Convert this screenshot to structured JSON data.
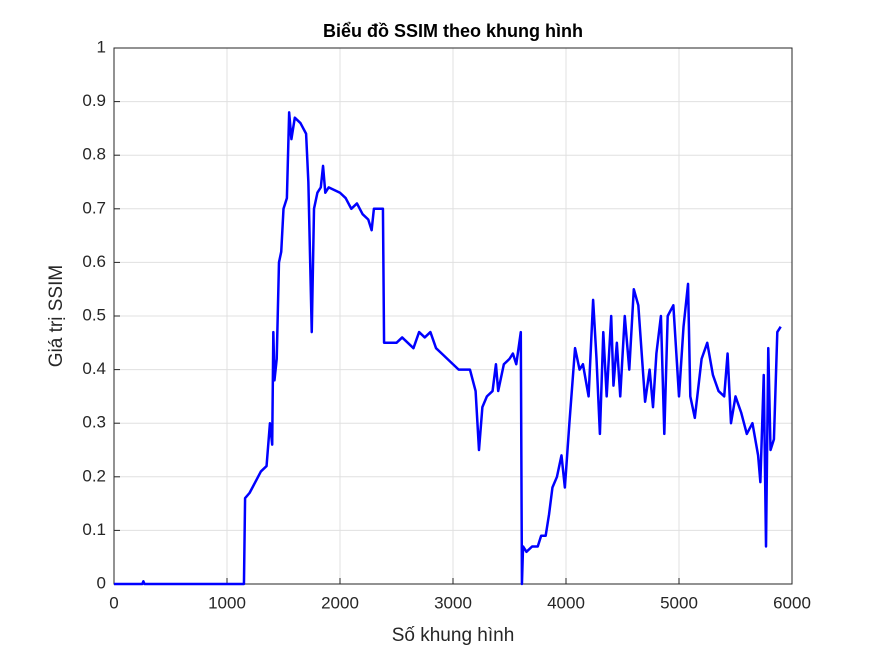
{
  "chart_data": {
    "type": "line",
    "title": "Biểu đồ SSIM theo khung hình",
    "x_label": "Số khung hình",
    "y_label": "Giá trị SSIM",
    "xlim": [
      0,
      6000
    ],
    "xticks": [
      0,
      1000,
      2000,
      3000,
      4000,
      5000,
      6000
    ],
    "ylim": [
      0,
      1
    ],
    "yticks": [
      0,
      0.1,
      0.2,
      0.3,
      0.4,
      0.5,
      0.6,
      0.7,
      0.8,
      0.9,
      1
    ],
    "grid": true,
    "series": [
      {
        "color": "#0000ff",
        "x": [
          0,
          250,
          260,
          270,
          1150,
          1160,
          1200,
          1250,
          1300,
          1350,
          1380,
          1400,
          1410,
          1420,
          1440,
          1460,
          1480,
          1500,
          1530,
          1550,
          1570,
          1600,
          1650,
          1700,
          1720,
          1750,
          1770,
          1800,
          1830,
          1850,
          1870,
          1900,
          2000,
          2050,
          2100,
          2150,
          2200,
          2250,
          2280,
          2300,
          2350,
          2380,
          2390,
          2450,
          2500,
          2550,
          2600,
          2650,
          2700,
          2750,
          2800,
          2850,
          2900,
          3000,
          3050,
          3100,
          3150,
          3200,
          3230,
          3260,
          3300,
          3350,
          3380,
          3400,
          3450,
          3500,
          3530,
          3560,
          3600,
          3610,
          3620,
          3650,
          3700,
          3750,
          3780,
          3820,
          3850,
          3880,
          3920,
          3960,
          3990,
          4030,
          4080,
          4120,
          4150,
          4200,
          4240,
          4270,
          4300,
          4330,
          4360,
          4400,
          4420,
          4450,
          4480,
          4520,
          4560,
          4600,
          4640,
          4680,
          4700,
          4740,
          4770,
          4800,
          4840,
          4870,
          4900,
          4950,
          5000,
          5040,
          5080,
          5100,
          5140,
          5200,
          5250,
          5300,
          5350,
          5400,
          5430,
          5460,
          5500,
          5550,
          5600,
          5650,
          5700,
          5720,
          5750,
          5770,
          5790,
          5810,
          5840,
          5870,
          5900
        ],
        "values": [
          0,
          0,
          0.005,
          0,
          0,
          0.16,
          0.17,
          0.19,
          0.21,
          0.22,
          0.3,
          0.26,
          0.47,
          0.38,
          0.42,
          0.6,
          0.62,
          0.7,
          0.72,
          0.88,
          0.83,
          0.87,
          0.86,
          0.84,
          0.75,
          0.47,
          0.7,
          0.73,
          0.74,
          0.78,
          0.73,
          0.74,
          0.73,
          0.72,
          0.7,
          0.71,
          0.69,
          0.68,
          0.66,
          0.7,
          0.7,
          0.7,
          0.45,
          0.45,
          0.45,
          0.46,
          0.45,
          0.44,
          0.47,
          0.46,
          0.47,
          0.44,
          0.43,
          0.41,
          0.4,
          0.4,
          0.4,
          0.36,
          0.25,
          0.33,
          0.35,
          0.36,
          0.41,
          0.36,
          0.41,
          0.42,
          0.43,
          0.41,
          0.47,
          0,
          0.07,
          0.06,
          0.07,
          0.07,
          0.09,
          0.09,
          0.13,
          0.18,
          0.2,
          0.24,
          0.18,
          0.3,
          0.44,
          0.4,
          0.41,
          0.35,
          0.53,
          0.42,
          0.28,
          0.47,
          0.35,
          0.5,
          0.37,
          0.45,
          0.35,
          0.5,
          0.4,
          0.55,
          0.52,
          0.4,
          0.34,
          0.4,
          0.33,
          0.43,
          0.5,
          0.28,
          0.5,
          0.52,
          0.35,
          0.48,
          0.56,
          0.35,
          0.31,
          0.42,
          0.45,
          0.39,
          0.36,
          0.35,
          0.43,
          0.3,
          0.35,
          0.32,
          0.28,
          0.3,
          0.24,
          0.19,
          0.39,
          0.07,
          0.44,
          0.25,
          0.27,
          0.47,
          0.48
        ]
      }
    ]
  }
}
